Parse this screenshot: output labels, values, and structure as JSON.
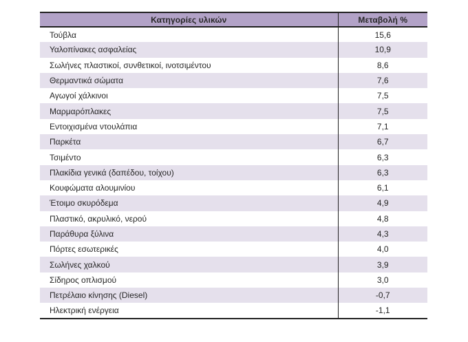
{
  "table": {
    "header": {
      "category": "Κατηγορίες υλικών",
      "change": "Μεταβολή %"
    },
    "rows": [
      {
        "category": "Τούβλα",
        "change": "15,6"
      },
      {
        "category": "Υαλοπίνακες ασφαλείας",
        "change": "10,9"
      },
      {
        "category": "Σωλήνες πλαστικοί, συνθετικοί, ινοτσιμέντου",
        "change": "8,6"
      },
      {
        "category": "Θερμαντικά σώματα",
        "change": "7,6"
      },
      {
        "category": "Αγωγοί χάλκινοι",
        "change": "7,5"
      },
      {
        "category": "Μαρμαρόπλακες",
        "change": "7,5"
      },
      {
        "category": "Εντοιχισμένα ντουλάπια",
        "change": "7,1"
      },
      {
        "category": "Παρκέτα",
        "change": "6,7"
      },
      {
        "category": "Τσιμέντο",
        "change": "6,3"
      },
      {
        "category": "Πλακίδια γενικά (δαπέδου, τοίχου)",
        "change": "6,3"
      },
      {
        "category": "Κουφώματα αλουμινίου",
        "change": "6,1"
      },
      {
        "category": "Έτοιμο σκυρόδεμα",
        "change": "4,9"
      },
      {
        "category": "Πλαστικό, ακρυλικό, νερού",
        "change": "4,8"
      },
      {
        "category": "Παράθυρα ξύλινα",
        "change": "4,3"
      },
      {
        "category": "Πόρτες εσωτερικές",
        "change": "4,0"
      },
      {
        "category": "Σωλήνες χαλκού",
        "change": "3,9"
      },
      {
        "category": "Σίδηρος οπλισμού",
        "change": "3,0"
      },
      {
        "category": "Πετρέλαιο κίνησης (Diesel)",
        "change": "-0,7"
      },
      {
        "category": "Ηλεκτρική ενέργεια",
        "change": "-1,1"
      }
    ]
  },
  "colors": {
    "header_bg": "#b2a2c7",
    "stripe_bg": "#e5e0ec",
    "border": "#1f1f1f",
    "text": "#262626",
    "page_bg": "#ffffff"
  }
}
